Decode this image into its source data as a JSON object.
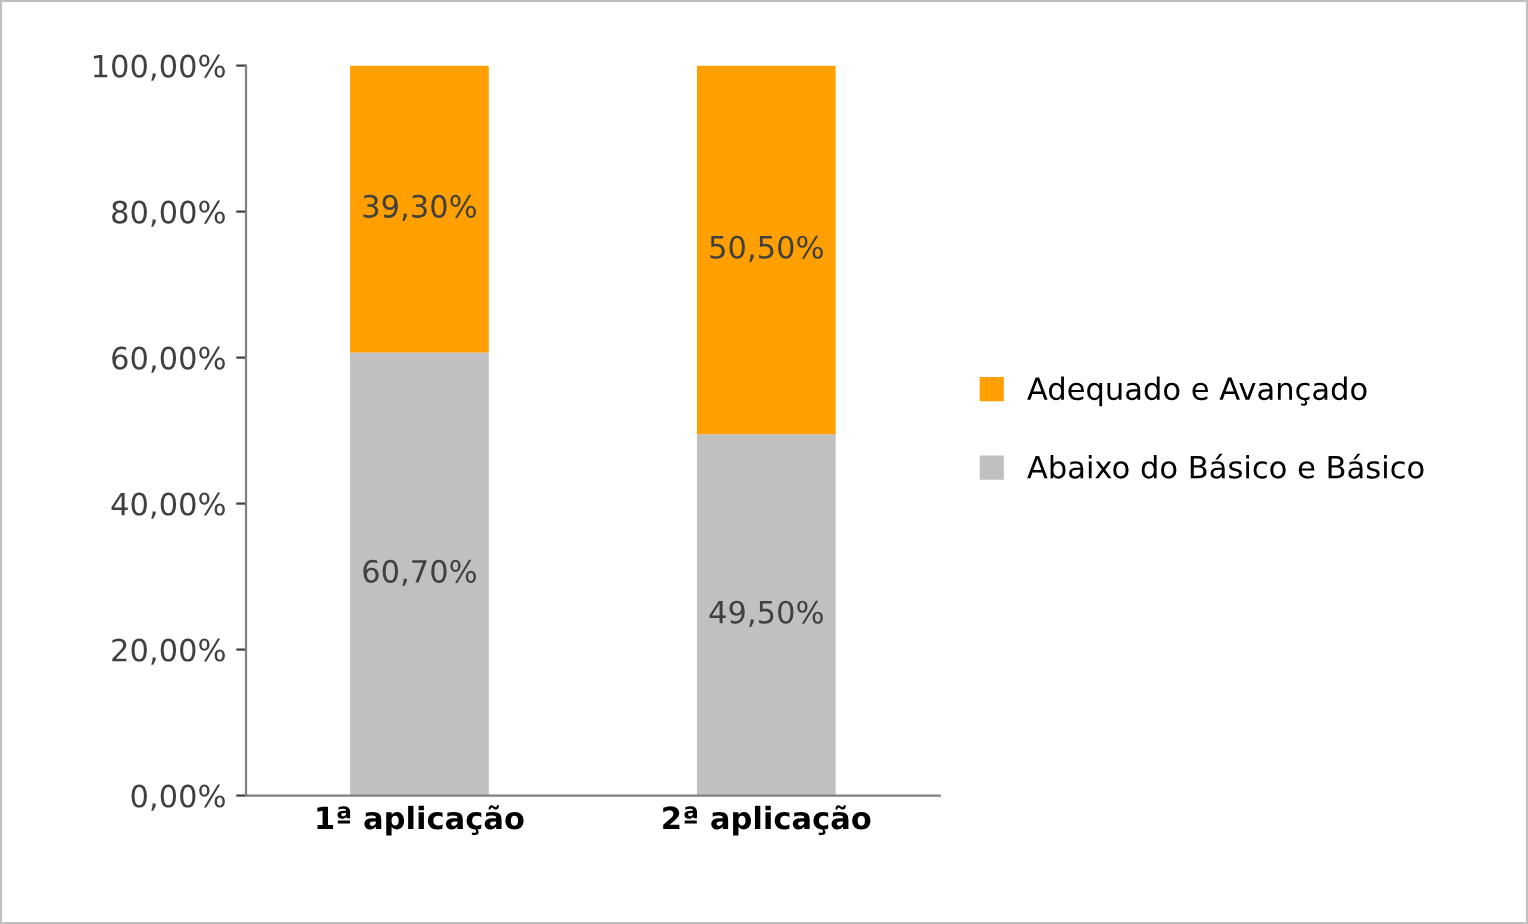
{
  "chart_data": {
    "type": "bar",
    "stacked": true,
    "categories": [
      "1ª aplicação",
      "2ª aplicação"
    ],
    "series": [
      {
        "name": "Abaixo do Básico e Básico",
        "color": "#c0c0c0",
        "values": [
          60.7,
          49.5
        ],
        "value_labels": [
          "60,70%",
          "49,50%"
        ]
      },
      {
        "name": "Adequado e Avançado",
        "color": "#ffa000",
        "values": [
          39.3,
          50.5
        ],
        "value_labels": [
          "39,30%",
          "50,50%"
        ]
      }
    ],
    "ylim": [
      0,
      100
    ],
    "yticks": [
      {
        "value": 0,
        "label": "0,00%"
      },
      {
        "value": 20,
        "label": "20,00%"
      },
      {
        "value": 40,
        "label": "40,00%"
      },
      {
        "value": 60,
        "label": "60,00%"
      },
      {
        "value": 80,
        "label": "80,00%"
      },
      {
        "value": 100,
        "label": "100,00%"
      }
    ],
    "grid": false,
    "legend": "right"
  }
}
